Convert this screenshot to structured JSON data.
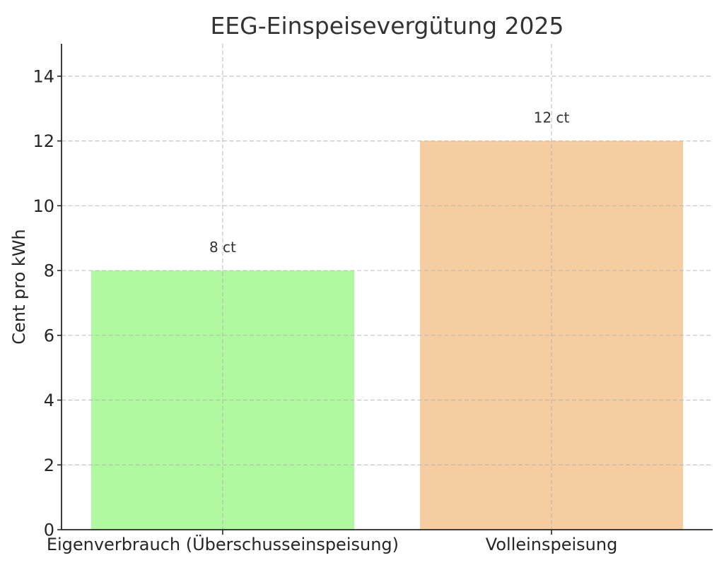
{
  "chart_data": {
    "type": "bar",
    "title": "EEG-Einspeisevergütung 2025",
    "ylabel": "Cent pro kWh",
    "categories": [
      "Eigenverbrauch (Überschusseinspeisung)",
      "Volleinspeisung"
    ],
    "values": [
      8,
      12
    ],
    "data_labels": [
      "8 ct",
      "12 ct"
    ],
    "colors": [
      "#b1f9a1",
      "#f5cda0"
    ],
    "ylim": [
      0,
      15
    ],
    "y_ticks": [
      0,
      2,
      4,
      6,
      8,
      10,
      12,
      14
    ],
    "grid": true
  }
}
